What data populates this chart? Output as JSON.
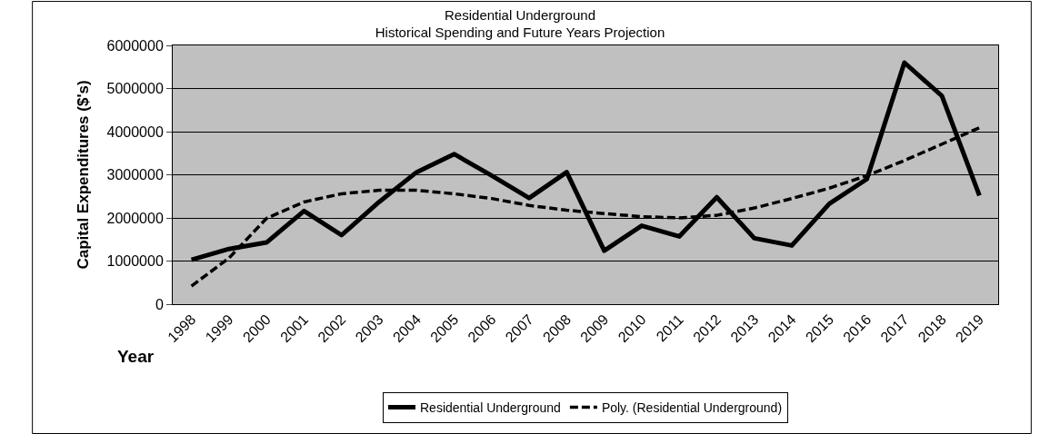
{
  "chart_data": {
    "type": "line",
    "title": "Residential Underground",
    "subtitle": "Historical Spending and Future Years Projection",
    "xlabel": "Year",
    "ylabel": "Capital Expenditures ($'s)",
    "categories": [
      "1998",
      "1999",
      "2000",
      "2001",
      "2002",
      "2003",
      "2004",
      "2005",
      "2006",
      "2007",
      "2008",
      "2009",
      "2010",
      "2011",
      "2012",
      "2013",
      "2014",
      "2015",
      "2016",
      "2017",
      "2018",
      "2019"
    ],
    "series": [
      {
        "name": "Residential Underground",
        "color": "#000000",
        "line_style": "solid",
        "values": [
          1030000,
          1280000,
          1430000,
          2160000,
          1600000,
          2370000,
          3060000,
          3480000,
          2980000,
          2460000,
          3060000,
          1240000,
          1820000,
          1570000,
          2480000,
          1530000,
          1360000,
          2330000,
          2900000,
          5600000,
          4830000,
          2520000
        ]
      },
      {
        "name": "Poly. (Residential Underground)",
        "color": "#000000",
        "line_style": "dashed",
        "values": [
          420000,
          1070000,
          1990000,
          2370000,
          2560000,
          2640000,
          2640000,
          2560000,
          2450000,
          2290000,
          2180000,
          2100000,
          2030000,
          2000000,
          2060000,
          2230000,
          2450000,
          2690000,
          2980000,
          3330000,
          3710000,
          4090000
        ]
      }
    ],
    "ylim": [
      0,
      6000000
    ],
    "yticks": [
      0,
      1000000,
      2000000,
      3000000,
      4000000,
      5000000,
      6000000
    ],
    "grid": "y",
    "legend": "bottom",
    "marker": "none"
  }
}
